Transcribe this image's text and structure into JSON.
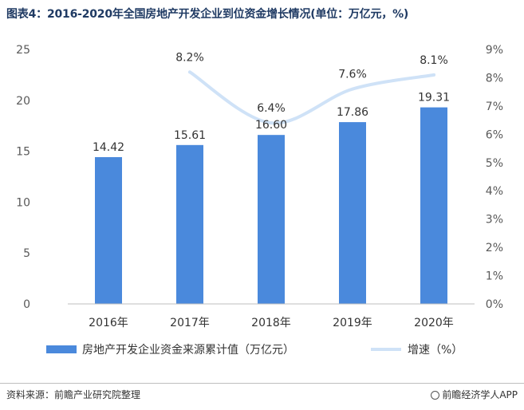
{
  "title": "图表4：2016-2020年全国房地产开发企业到位资金增长情况(单位：万亿元，%)",
  "source": "资料来源：前瞻产业研究院整理",
  "brand": "前瞻经济学人APP",
  "colors": {
    "bar": "#4a89dc",
    "line": "#cfe2f7",
    "axis": "#595959"
  },
  "chart_data": {
    "type": "bar",
    "categories": [
      "2016年",
      "2017年",
      "2018年",
      "2019年",
      "2020年"
    ],
    "series": [
      {
        "name": "房地产开发企业资金来源累计值（万亿元）",
        "type": "bar",
        "axis": "left",
        "values": [
          14.42,
          15.61,
          16.6,
          17.86,
          19.31
        ],
        "labels": [
          "14.42",
          "15.61",
          "16.60",
          "17.86",
          "19.31"
        ]
      },
      {
        "name": "增速（%）",
        "type": "line",
        "axis": "right",
        "values": [
          null,
          8.2,
          6.4,
          7.6,
          8.1
        ],
        "labels": [
          "",
          "8.2%",
          "6.4%",
          "7.6%",
          "8.1%"
        ]
      }
    ],
    "ylim": [
      0,
      25
    ],
    "yticks": [
      "0",
      "5",
      "10",
      "15",
      "20",
      "25"
    ],
    "y2lim": [
      0,
      9
    ],
    "y2ticks": [
      "0%",
      "1%",
      "2%",
      "3%",
      "4%",
      "5%",
      "6%",
      "7%",
      "8%",
      "9%"
    ],
    "legend": "bottom",
    "grid": false
  }
}
